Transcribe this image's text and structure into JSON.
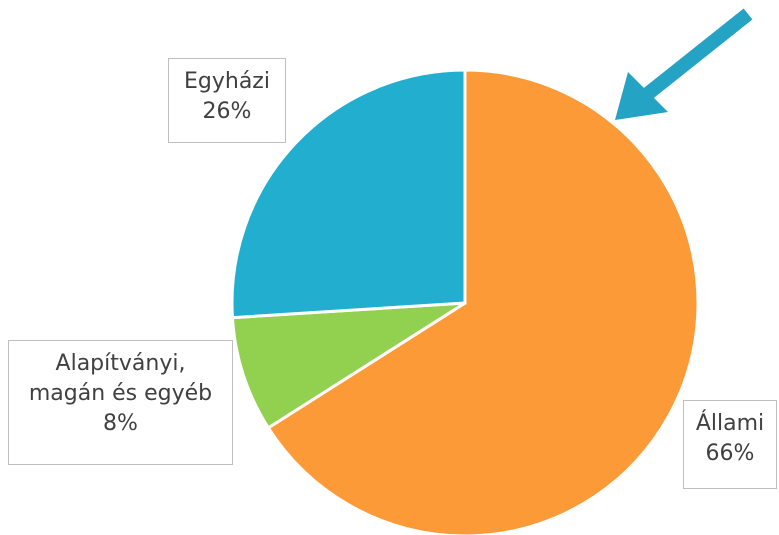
{
  "chart_data": {
    "type": "pie",
    "categories": [
      "Állami",
      "Alapítványi, magán és egyéb",
      "Egyházi"
    ],
    "values": [
      66,
      8,
      26
    ],
    "value_labels": [
      "66%",
      "8%",
      "26%"
    ],
    "colors": [
      "#fd9a38",
      "#92d14f",
      "#21aecf"
    ]
  }
}
